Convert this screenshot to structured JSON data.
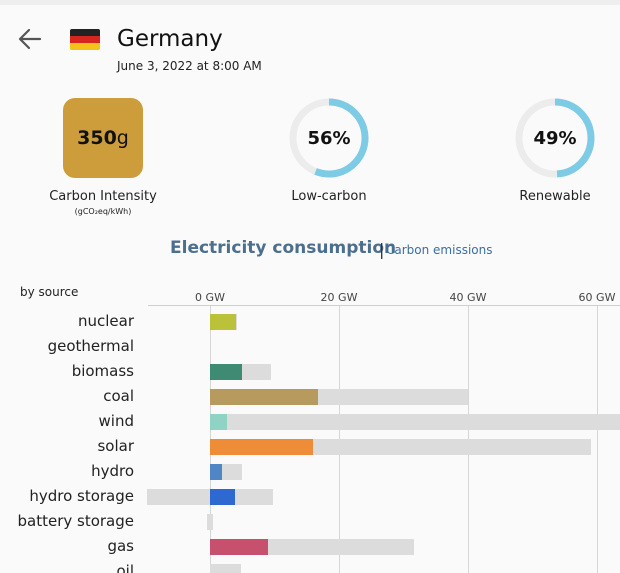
{
  "header": {
    "back_icon": "arrow-left-icon",
    "flag_icon": "germany-flag-icon",
    "country": "Germany",
    "datetime": "June 3, 2022 at 8:00 AM"
  },
  "stats": {
    "carbon_intensity": {
      "value": "350",
      "unit": "g",
      "label": "Carbon Intensity",
      "sublabel": "(gCO₂eq/kWh)",
      "color": "#cd9d3c"
    },
    "low_carbon": {
      "value": "56%",
      "fraction": 0.56,
      "label": "Low-carbon",
      "color": "#7ecbe6"
    },
    "renewable": {
      "value": "49%",
      "fraction": 0.49,
      "label": "Renewable",
      "color": "#7ecbe6"
    }
  },
  "tabs": {
    "active": "Electricity consumption",
    "separator": "|",
    "inactive": "Carbon emissions"
  },
  "chart_data": {
    "type": "bar",
    "title": "",
    "ylabel": "by source",
    "x_unit": "GW",
    "xlim": [
      -10,
      64
    ],
    "ticks": [
      "0 GW",
      "20 GW",
      "40 GW",
      "60 GW"
    ],
    "tick_values": [
      0,
      20,
      40,
      60
    ],
    "categories": [
      "nuclear",
      "geothermal",
      "biomass",
      "coal",
      "wind",
      "solar",
      "hydro",
      "hydro storage",
      "battery storage",
      "gas",
      "oil"
    ],
    "series": [
      {
        "role": "production",
        "values": [
          4.0,
          0,
          5.0,
          16.8,
          2.6,
          16.0,
          1.8,
          3.9,
          0,
          9.0,
          0
        ],
        "colors": [
          "#bcc13a",
          "#999999",
          "#3f8a73",
          "#b79a5e",
          "#8fd3c4",
          "#ef8c37",
          "#4f86c6",
          "#2d69d1",
          "#999999",
          "#c7506e",
          "#666666"
        ]
      },
      {
        "role": "capacity",
        "values": [
          4.2,
          0,
          9.4,
          40.0,
          64.0,
          59.0,
          4.9,
          9.8,
          0.5,
          31.7,
          4.8
        ],
        "min_values": [
          0,
          0,
          0,
          0,
          0,
          0,
          0,
          -9.8,
          -0.5,
          0,
          0
        ]
      }
    ]
  }
}
